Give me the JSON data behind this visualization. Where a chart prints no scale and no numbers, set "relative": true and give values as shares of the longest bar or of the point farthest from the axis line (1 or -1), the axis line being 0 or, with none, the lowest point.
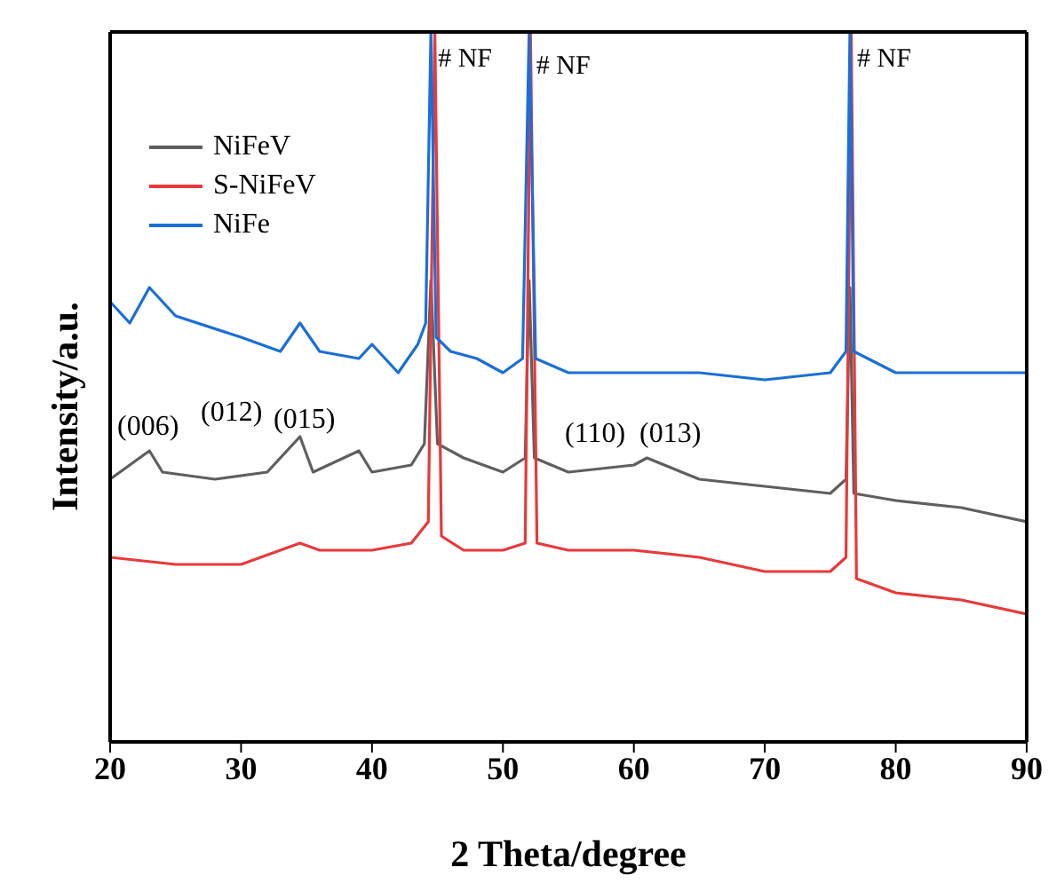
{
  "chart_data": {
    "type": "line",
    "relative": true,
    "xlabel": "2 Theta/degree",
    "ylabel": "Intensity/a.u.",
    "xlim": [
      20,
      90
    ],
    "xticks": [
      20,
      30,
      40,
      50,
      60,
      70,
      80,
      90
    ],
    "legend": "top left",
    "marker": "none",
    "line_style": "solid",
    "series": [
      {
        "name": "NiFeV",
        "color": "#5f5f5f",
        "x": [
          20,
          23,
          24,
          28,
          32,
          34.5,
          35.5,
          39,
          40,
          43,
          44,
          44.5,
          45,
          47,
          50,
          51.7,
          52,
          52.4,
          55,
          60,
          61,
          65,
          70,
          75,
          76.2,
          76.5,
          76.8,
          80,
          85,
          90
        ],
        "values": [
          0.37,
          0.41,
          0.38,
          0.37,
          0.38,
          0.43,
          0.38,
          0.41,
          0.38,
          0.39,
          0.42,
          0.65,
          0.42,
          0.4,
          0.38,
          0.4,
          0.65,
          0.4,
          0.38,
          0.39,
          0.4,
          0.37,
          0.36,
          0.35,
          0.37,
          0.64,
          0.35,
          0.34,
          0.33,
          0.31
        ]
      },
      {
        "name": "S-NiFeV",
        "color": "#e8393b",
        "x": [
          20,
          25,
          30,
          33,
          34.5,
          36,
          40,
          43,
          44.3,
          44.8,
          45.3,
          47,
          50,
          51.7,
          52.1,
          52.6,
          55,
          60,
          65,
          70,
          75,
          76.2,
          76.6,
          77,
          80,
          85,
          90
        ],
        "values": [
          0.26,
          0.25,
          0.25,
          0.27,
          0.28,
          0.27,
          0.27,
          0.28,
          0.31,
          1,
          0.29,
          0.27,
          0.27,
          0.28,
          1,
          0.28,
          0.27,
          0.27,
          0.26,
          0.24,
          0.24,
          0.26,
          1,
          0.23,
          0.21,
          0.2,
          0.18
        ]
      },
      {
        "name": "NiFe",
        "color": "#1a6fd8",
        "x": [
          20,
          21.5,
          23,
          25,
          30,
          33,
          34.5,
          36,
          39,
          40,
          42,
          43.5,
          44.1,
          44.5,
          44.9,
          46,
          48,
          50,
          51.5,
          52,
          52.5,
          55,
          60,
          65,
          70,
          75,
          76.2,
          76.5,
          76.8,
          80,
          85,
          90
        ],
        "values": [
          0.62,
          0.59,
          0.64,
          0.6,
          0.57,
          0.55,
          0.59,
          0.55,
          0.54,
          0.56,
          0.52,
          0.56,
          0.59,
          1,
          0.57,
          0.55,
          0.54,
          0.52,
          0.54,
          1,
          0.54,
          0.52,
          0.52,
          0.52,
          0.51,
          0.52,
          0.55,
          1,
          0.55,
          0.52,
          0.52,
          0.52
        ]
      }
    ],
    "annotations": [
      {
        "text": "# NF",
        "x": 44.5,
        "y": 0.96
      },
      {
        "text": "# NF",
        "x": 52,
        "y": 0.95
      },
      {
        "text": "# NF",
        "x": 76.5,
        "y": 0.96
      },
      "(006)",
      "(012)",
      "(015)",
      "(110)",
      "(013)"
    ]
  }
}
